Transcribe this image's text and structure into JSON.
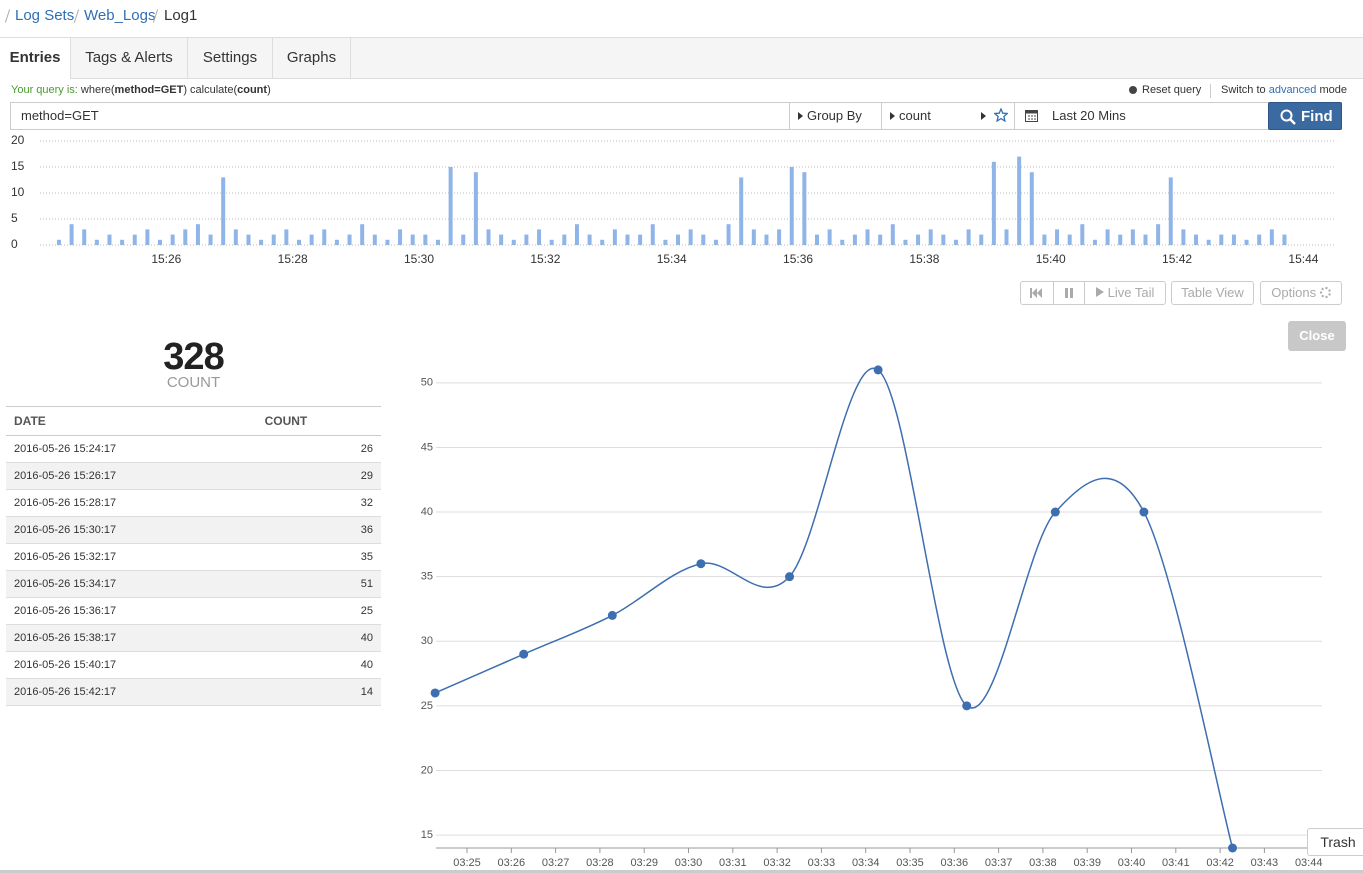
{
  "breadcrumb": [
    "Log Sets",
    "Web_Logs",
    "Log1"
  ],
  "tabs": [
    "Entries",
    "Tags & Alerts",
    "Settings",
    "Graphs"
  ],
  "query": {
    "prefix": "Your query is:",
    "parts": [
      "where(",
      "method=GET",
      ") calculate(",
      "count",
      ")"
    ]
  },
  "reset_query": "Reset query",
  "switch_mode": [
    "Switch to",
    "advanced",
    "mode"
  ],
  "search": {
    "input": "method=GET",
    "group_by": "Group By",
    "calc": "count",
    "range": "Last 20 Mins",
    "find": "Find"
  },
  "controls": [
    "Live Tail",
    "Table View",
    "Options"
  ],
  "close": "Close",
  "summary": {
    "value": 328,
    "label": "COUNT"
  },
  "table": {
    "columns": [
      "DATE",
      "COUNT"
    ],
    "rows": [
      [
        "2016-05-26 15:24:17",
        26
      ],
      [
        "2016-05-26 15:26:17",
        29
      ],
      [
        "2016-05-26 15:28:17",
        32
      ],
      [
        "2016-05-26 15:30:17",
        36
      ],
      [
        "2016-05-26 15:32:17",
        35
      ],
      [
        "2016-05-26 15:34:17",
        51
      ],
      [
        "2016-05-26 15:36:17",
        25
      ],
      [
        "2016-05-26 15:38:17",
        40
      ],
      [
        "2016-05-26 15:40:17",
        40
      ],
      [
        "2016-05-26 15:42:17",
        14
      ]
    ]
  },
  "trash": "Trash",
  "chart_data": [
    {
      "type": "bar",
      "color": "#8fb4e8",
      "x": [
        24.3,
        24.5,
        24.7,
        24.9,
        25.1,
        25.3,
        25.5,
        25.7,
        25.9,
        26.1,
        26.3,
        26.5,
        26.7,
        26.9,
        27.1,
        27.3,
        27.5,
        27.7,
        27.9,
        28.1,
        28.3,
        28.5,
        28.7,
        28.9,
        29.1,
        29.3,
        29.5,
        29.7,
        29.9,
        30.1,
        30.3,
        30.5,
        30.7,
        30.9,
        31.1,
        31.3,
        31.5,
        31.7,
        31.9,
        32.1,
        32.3,
        32.5,
        32.7,
        32.9,
        33.1,
        33.3,
        33.5,
        33.7,
        33.9,
        34.1,
        34.3,
        34.5,
        34.7,
        34.9,
        35.1,
        35.3,
        35.5,
        35.7,
        35.9,
        36.1,
        36.3,
        36.5,
        36.7,
        36.9,
        37.1,
        37.3,
        37.5,
        37.7,
        37.9,
        38.1,
        38.3,
        38.5,
        38.7,
        38.9,
        39.1,
        39.3,
        39.5,
        39.7,
        39.9,
        40.1,
        40.3,
        40.5,
        40.7,
        40.9,
        41.1,
        41.3,
        41.5,
        41.7,
        41.9,
        42.1,
        42.3,
        42.5,
        42.7,
        42.9,
        43.1,
        43.3,
        43.5,
        43.7,
        43.9,
        44.1
      ],
      "values": [
        1,
        4,
        3,
        1,
        2,
        1,
        2,
        3,
        1,
        2,
        3,
        4,
        2,
        13,
        3,
        2,
        1,
        2,
        3,
        1,
        2,
        3,
        1,
        2,
        4,
        2,
        1,
        3,
        2,
        2,
        1,
        15,
        2,
        14,
        3,
        2,
        1,
        2,
        3,
        1,
        2,
        4,
        2,
        1,
        3,
        2,
        2,
        4,
        1,
        2,
        3,
        2,
        1,
        4,
        13,
        3,
        2,
        3,
        15,
        14,
        2,
        3,
        1,
        2,
        3,
        2,
        4,
        1,
        2,
        3,
        2,
        1,
        3,
        2,
        16,
        3,
        17,
        14,
        2,
        3,
        2,
        4,
        1,
        3,
        2,
        3,
        2,
        4,
        13,
        3,
        2,
        1,
        2,
        2,
        1,
        2,
        3,
        2,
        0,
        0
      ],
      "xlim": [
        24,
        44.5
      ],
      "xticks": [
        {
          "value": 26,
          "label": "15:26"
        },
        {
          "value": 28,
          "label": "15:28"
        },
        {
          "value": 30,
          "label": "15:30"
        },
        {
          "value": 32,
          "label": "15:32"
        },
        {
          "value": 34,
          "label": "15:34"
        },
        {
          "value": 36,
          "label": "15:36"
        },
        {
          "value": 38,
          "label": "15:38"
        },
        {
          "value": 40,
          "label": "15:40"
        },
        {
          "value": 42,
          "label": "15:42"
        },
        {
          "value": 44,
          "label": "15:44"
        }
      ],
      "ylim": [
        0,
        20
      ],
      "yticks": [
        0,
        5,
        10,
        15,
        20
      ],
      "grid": true
    },
    {
      "type": "line",
      "color": "#3d6eb0",
      "x": [
        24.28,
        26.28,
        28.28,
        30.28,
        32.28,
        34.28,
        36.28,
        38.28,
        40.28,
        42.28
      ],
      "values": [
        26,
        29,
        32,
        36,
        35,
        51,
        25,
        40,
        40,
        14
      ],
      "xlim": [
        24.3,
        44.3
      ],
      "xticks": [
        {
          "value": 25,
          "label": "03:25"
        },
        {
          "value": 26,
          "label": "03:26"
        },
        {
          "value": 27,
          "label": "03:27"
        },
        {
          "value": 28,
          "label": "03:28"
        },
        {
          "value": 29,
          "label": "03:29"
        },
        {
          "value": 30,
          "label": "03:30"
        },
        {
          "value": 31,
          "label": "03:31"
        },
        {
          "value": 32,
          "label": "03:32"
        },
        {
          "value": 33,
          "label": "03:33"
        },
        {
          "value": 34,
          "label": "03:34"
        },
        {
          "value": 35,
          "label": "03:35"
        },
        {
          "value": 36,
          "label": "03:36"
        },
        {
          "value": 37,
          "label": "03:37"
        },
        {
          "value": 38,
          "label": "03:38"
        },
        {
          "value": 39,
          "label": "03:39"
        },
        {
          "value": 40,
          "label": "03:40"
        },
        {
          "value": 41,
          "label": "03:41"
        },
        {
          "value": 42,
          "label": "03:42"
        },
        {
          "value": 43,
          "label": "03:43"
        },
        {
          "value": 44,
          "label": "03:44"
        }
      ],
      "ylim": [
        14,
        52
      ],
      "yticks": [
        15,
        20,
        25,
        30,
        35,
        40,
        45,
        50
      ],
      "grid": true
    }
  ]
}
